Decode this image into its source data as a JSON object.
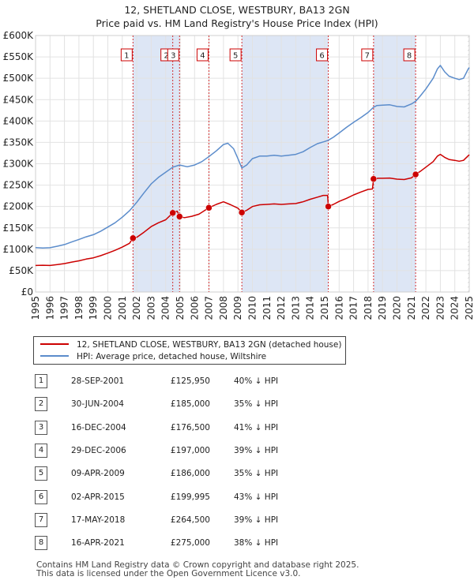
{
  "title": {
    "line1": "12, SHETLAND CLOSE, WESTBURY, BA13 2GN",
    "line2": "Price paid vs. HM Land Registry's House Price Index (HPI)"
  },
  "legend": {
    "property": "12, SHETLAND CLOSE, WESTBURY, BA13 2GN (detached house)",
    "hpi": "HPI: Average price, detached house, Wiltshire"
  },
  "colors": {
    "property": "#cc0000",
    "hpi": "#5b8ccb",
    "shade": "#dde6f5",
    "marker_line": "#cc0000"
  },
  "chart_data": {
    "type": "line",
    "title": "Price paid vs. HM Land Registry's House Price Index (HPI)",
    "x_range": [
      1995,
      2025
    ],
    "ylim": [
      0,
      600000
    ],
    "x_ticks": [
      "1995",
      "1996",
      "1997",
      "1998",
      "1999",
      "2000",
      "2001",
      "2002",
      "2003",
      "2004",
      "2005",
      "2006",
      "2007",
      "2008",
      "2009",
      "2010",
      "2011",
      "2012",
      "2013",
      "2014",
      "2015",
      "2016",
      "2017",
      "2018",
      "2019",
      "2020",
      "2021",
      "2022",
      "2023",
      "2024",
      "2025"
    ],
    "y_ticks": [
      {
        "value": 0,
        "label": "£0"
      },
      {
        "value": 50000,
        "label": "£50K"
      },
      {
        "value": 100000,
        "label": "£100K"
      },
      {
        "value": 150000,
        "label": "£150K"
      },
      {
        "value": 200000,
        "label": "£200K"
      },
      {
        "value": 250000,
        "label": "£250K"
      },
      {
        "value": 300000,
        "label": "£300K"
      },
      {
        "value": 350000,
        "label": "£350K"
      },
      {
        "value": 400000,
        "label": "£400K"
      },
      {
        "value": 450000,
        "label": "£450K"
      },
      {
        "value": 500000,
        "label": "£500K"
      },
      {
        "value": 550000,
        "label": "£550K"
      },
      {
        "value": 600000,
        "label": "£600K"
      }
    ],
    "series": [
      {
        "name": "HPI: Average price, detached house, Wiltshire",
        "color": "#5b8ccb",
        "points": [
          [
            1995.0,
            104000
          ],
          [
            1995.5,
            103000
          ],
          [
            1996.0,
            103500
          ],
          [
            1996.5,
            107000
          ],
          [
            1997.0,
            111000
          ],
          [
            1997.5,
            117000
          ],
          [
            1998.0,
            123000
          ],
          [
            1998.5,
            129000
          ],
          [
            1999.0,
            134000
          ],
          [
            1999.5,
            142000
          ],
          [
            2000.0,
            152000
          ],
          [
            2000.5,
            162000
          ],
          [
            2001.0,
            175000
          ],
          [
            2001.5,
            190000
          ],
          [
            2002.0,
            210000
          ],
          [
            2002.5,
            232000
          ],
          [
            2003.0,
            253000
          ],
          [
            2003.5,
            268000
          ],
          [
            2004.0,
            280000
          ],
          [
            2004.5,
            292000
          ],
          [
            2004.96,
            297000
          ],
          [
            2005.5,
            293000
          ],
          [
            2006.0,
            297000
          ],
          [
            2006.5,
            305000
          ],
          [
            2007.0,
            317000
          ],
          [
            2007.5,
            330000
          ],
          [
            2008.0,
            345000
          ],
          [
            2008.3,
            348000
          ],
          [
            2008.7,
            335000
          ],
          [
            2009.0,
            312000
          ],
          [
            2009.27,
            290000
          ],
          [
            2009.6,
            297000
          ],
          [
            2010.0,
            312000
          ],
          [
            2010.5,
            318000
          ],
          [
            2011.0,
            318000
          ],
          [
            2011.5,
            320000
          ],
          [
            2012.0,
            318000
          ],
          [
            2012.5,
            320000
          ],
          [
            2013.0,
            322000
          ],
          [
            2013.5,
            328000
          ],
          [
            2014.0,
            338000
          ],
          [
            2014.5,
            347000
          ],
          [
            2015.0,
            352000
          ],
          [
            2015.25,
            355000
          ],
          [
            2015.6,
            362000
          ],
          [
            2016.0,
            372000
          ],
          [
            2016.5,
            385000
          ],
          [
            2017.0,
            397000
          ],
          [
            2017.5,
            408000
          ],
          [
            2018.0,
            420000
          ],
          [
            2018.37,
            432000
          ],
          [
            2018.6,
            436000
          ],
          [
            2019.0,
            437000
          ],
          [
            2019.5,
            438000
          ],
          [
            2020.0,
            434000
          ],
          [
            2020.5,
            433000
          ],
          [
            2021.0,
            440000
          ],
          [
            2021.29,
            446000
          ],
          [
            2021.6,
            458000
          ],
          [
            2022.0,
            475000
          ],
          [
            2022.5,
            500000
          ],
          [
            2022.8,
            522000
          ],
          [
            2023.0,
            530000
          ],
          [
            2023.3,
            515000
          ],
          [
            2023.6,
            505000
          ],
          [
            2024.0,
            500000
          ],
          [
            2024.3,
            497000
          ],
          [
            2024.6,
            500000
          ],
          [
            2024.9,
            520000
          ],
          [
            2025.0,
            525000
          ]
        ]
      },
      {
        "name": "12, SHETLAND CLOSE, WESTBURY, BA13 2GN (detached house)",
        "color": "#cc0000",
        "points": [
          [
            1995.0,
            62000
          ],
          [
            1995.5,
            62500
          ],
          [
            1996.0,
            62000
          ],
          [
            1996.5,
            64000
          ],
          [
            1997.0,
            66500
          ],
          [
            1997.5,
            70000
          ],
          [
            1998.0,
            73000
          ],
          [
            1998.5,
            77000
          ],
          [
            1999.0,
            80000
          ],
          [
            1999.5,
            85000
          ],
          [
            2000.0,
            91000
          ],
          [
            2000.5,
            97500
          ],
          [
            2001.0,
            105000
          ],
          [
            2001.5,
            114000
          ],
          [
            2001.74,
            125950
          ],
          [
            2002.0,
            128000
          ],
          [
            2002.5,
            140000
          ],
          [
            2003.0,
            153000
          ],
          [
            2003.5,
            162000
          ],
          [
            2004.0,
            169000
          ],
          [
            2004.49,
            185000
          ],
          [
            2004.6,
            187000
          ],
          [
            2004.8,
            189000
          ],
          [
            2004.96,
            176500
          ],
          [
            2005.3,
            174000
          ],
          [
            2005.8,
            177000
          ],
          [
            2006.3,
            182000
          ],
          [
            2006.99,
            197000
          ],
          [
            2007.5,
            205000
          ],
          [
            2008.0,
            211000
          ],
          [
            2008.5,
            204000
          ],
          [
            2009.0,
            196000
          ],
          [
            2009.27,
            186000
          ],
          [
            2009.6,
            191000
          ],
          [
            2010.0,
            200000
          ],
          [
            2010.5,
            204000
          ],
          [
            2011.0,
            205000
          ],
          [
            2011.5,
            206000
          ],
          [
            2012.0,
            205000
          ],
          [
            2012.5,
            206000
          ],
          [
            2013.0,
            207000
          ],
          [
            2013.5,
            211000
          ],
          [
            2014.0,
            217000
          ],
          [
            2014.5,
            222000
          ],
          [
            2014.9,
            226000
          ],
          [
            2015.2,
            226000
          ],
          [
            2015.25,
            199995
          ],
          [
            2015.6,
            205000
          ],
          [
            2016.0,
            212000
          ],
          [
            2016.5,
            219000
          ],
          [
            2017.0,
            227000
          ],
          [
            2017.5,
            234000
          ],
          [
            2018.0,
            240000
          ],
          [
            2018.3,
            241000
          ],
          [
            2018.38,
            264500
          ],
          [
            2018.7,
            266000
          ],
          [
            2019.0,
            266000
          ],
          [
            2019.5,
            266500
          ],
          [
            2020.0,
            264000
          ],
          [
            2020.5,
            263000
          ],
          [
            2021.0,
            267000
          ],
          [
            2021.29,
            275000
          ],
          [
            2021.6,
            282000
          ],
          [
            2022.0,
            292000
          ],
          [
            2022.5,
            305000
          ],
          [
            2022.8,
            318000
          ],
          [
            2023.0,
            322000
          ],
          [
            2023.3,
            315000
          ],
          [
            2023.6,
            310000
          ],
          [
            2024.0,
            308000
          ],
          [
            2024.3,
            306000
          ],
          [
            2024.6,
            308000
          ],
          [
            2024.9,
            318000
          ],
          [
            2025.0,
            321000
          ]
        ]
      }
    ],
    "sales": [
      {
        "id": "1",
        "x": 2001.74,
        "price": 125950
      },
      {
        "id": "2",
        "x": 2004.49,
        "price": 185000
      },
      {
        "id": "3",
        "x": 2004.96,
        "price": 176500
      },
      {
        "id": "4",
        "x": 2006.99,
        "price": 197000
      },
      {
        "id": "5",
        "x": 2009.27,
        "price": 186000
      },
      {
        "id": "6",
        "x": 2015.25,
        "price": 199995
      },
      {
        "id": "7",
        "x": 2018.38,
        "price": 264500
      },
      {
        "id": "8",
        "x": 2021.29,
        "price": 275000
      }
    ],
    "shaded_spans": [
      [
        2001.74,
        2004.96
      ],
      [
        2009.27,
        2015.25
      ],
      [
        2018.38,
        2021.29
      ]
    ],
    "hatched_after": 2024.9
  },
  "transactions": [
    {
      "id": "1",
      "date": "28-SEP-2001",
      "price": "£125,950",
      "hpi": "40% ↓ HPI"
    },
    {
      "id": "2",
      "date": "30-JUN-2004",
      "price": "£185,000",
      "hpi": "35% ↓ HPI"
    },
    {
      "id": "3",
      "date": "16-DEC-2004",
      "price": "£176,500",
      "hpi": "41% ↓ HPI"
    },
    {
      "id": "4",
      "date": "29-DEC-2006",
      "price": "£197,000",
      "hpi": "39% ↓ HPI"
    },
    {
      "id": "5",
      "date": "09-APR-2009",
      "price": "£186,000",
      "hpi": "35% ↓ HPI"
    },
    {
      "id": "6",
      "date": "02-APR-2015",
      "price": "£199,995",
      "hpi": "43% ↓ HPI"
    },
    {
      "id": "7",
      "date": "17-MAY-2018",
      "price": "£264,500",
      "hpi": "39% ↓ HPI"
    },
    {
      "id": "8",
      "date": "16-APR-2021",
      "price": "£275,000",
      "hpi": "38% ↓ HPI"
    }
  ],
  "footer": {
    "line1": "Contains HM Land Registry data © Crown copyright and database right 2025.",
    "line2": "This data is licensed under the Open Government Licence v3.0."
  }
}
